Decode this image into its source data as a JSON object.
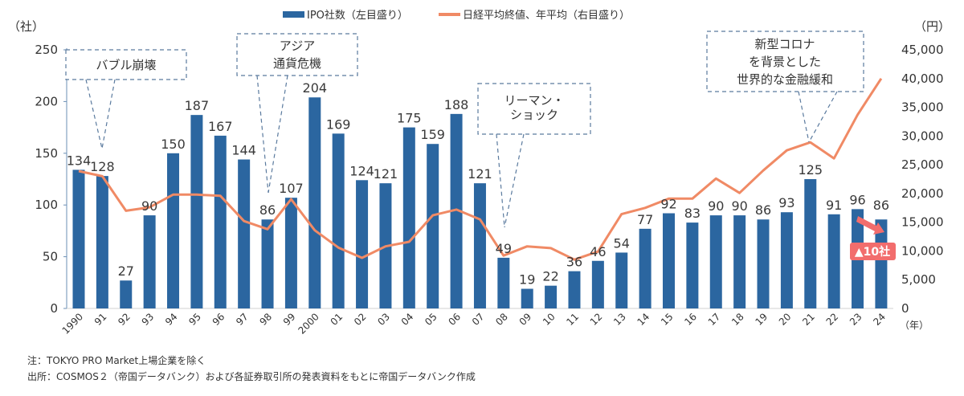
{
  "chart_data": {
    "type": "bar+line",
    "title": "",
    "left_axis": {
      "unit_label": "（社）",
      "ticks": [
        "0",
        "50",
        "100",
        "150",
        "200",
        "250"
      ],
      "range": [
        0,
        250
      ]
    },
    "right_axis": {
      "unit_label": "（円）",
      "ticks": [
        "0",
        "5,000",
        "10,000",
        "15,000",
        "20,000",
        "25,000",
        "30,000",
        "35,000",
        "40,000",
        "45,000"
      ],
      "range": [
        0,
        45000
      ]
    },
    "x_unit_label": "（年）",
    "categories": [
      "1990",
      "91",
      "92",
      "93",
      "94",
      "95",
      "96",
      "97",
      "98",
      "99",
      "2000",
      "01",
      "02",
      "03",
      "04",
      "05",
      "06",
      "07",
      "08",
      "09",
      "10",
      "11",
      "12",
      "13",
      "14",
      "15",
      "16",
      "17",
      "18",
      "19",
      "20",
      "21",
      "22",
      "23",
      "24"
    ],
    "series": [
      {
        "name": "IPO社数（左目盛り）",
        "type": "bar",
        "axis": "left",
        "color": "#2b66a0",
        "values": [
          134,
          128,
          27,
          90,
          150,
          187,
          167,
          144,
          86,
          107,
          204,
          169,
          124,
          121,
          175,
          159,
          188,
          121,
          49,
          19,
          22,
          36,
          46,
          54,
          77,
          92,
          83,
          90,
          90,
          86,
          93,
          125,
          91,
          96,
          86
        ]
      },
      {
        "name": "日経平均終値、年平均（右目盛り）",
        "type": "line",
        "axis": "right",
        "color": "#f08a65",
        "values": [
          23900,
          23000,
          17000,
          17600,
          19800,
          19800,
          19600,
          15200,
          13800,
          19000,
          13600,
          10600,
          8800,
          10800,
          11600,
          16200,
          17200,
          15500,
          9200,
          10800,
          10500,
          8500,
          9900,
          16400,
          17500,
          19100,
          19100,
          22600,
          20100,
          24000,
          27500,
          28900,
          26100,
          33700,
          40000
        ]
      }
    ],
    "legend": {
      "placement": "top-center"
    },
    "grid": false,
    "annotations": [
      {
        "text": [
          "バブル崩壊"
        ],
        "points_to": "91"
      },
      {
        "text": [
          "アジア",
          "通貨危機"
        ],
        "points_to": "98"
      },
      {
        "text": [
          "リーマン・",
          "ショック"
        ],
        "points_to": "08"
      },
      {
        "text": [
          "新型コロナ",
          "を背景とした",
          "世界的な金融緩和"
        ],
        "points_to": "21"
      }
    ],
    "change_badge": {
      "text": "▲10社",
      "color": "#f26d6d",
      "from": "23",
      "to": "24"
    }
  },
  "notes": {
    "note": "注：TOKYO PRO Market上場企業を除く",
    "source": "出所：COSMOS２（帝国データバンク）および各証券取引所の発表資料をもとに帝国データバンク作成"
  }
}
